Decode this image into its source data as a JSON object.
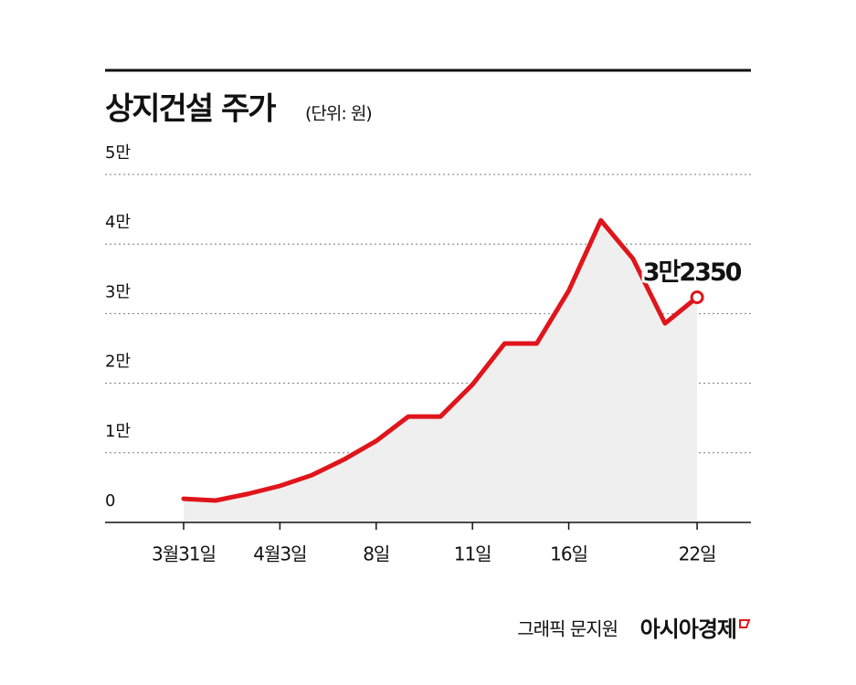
{
  "chart_data": {
    "type": "line",
    "title": "상지건설 주가",
    "subtitle": "(단위: 원)",
    "categories": [
      "3월31일",
      null,
      null,
      "4월3일",
      null,
      null,
      "8일",
      null,
      null,
      "11일",
      null,
      null,
      "16일",
      null,
      null,
      null,
      "22일"
    ],
    "series": [
      {
        "color": "#e0151b",
        "area_color": "#efefef",
        "values": [
          3400,
          3150,
          4100,
          5250,
          6800,
          9050,
          11700,
          15200,
          15200,
          19800,
          25700,
          25700,
          33300,
          43400,
          37900,
          28600,
          32350
        ],
        "value_labels": [
          null,
          null,
          null,
          null,
          null,
          null,
          null,
          null,
          null,
          null,
          null,
          null,
          null,
          null,
          null,
          null,
          "3만2350"
        ]
      }
    ],
    "ylim": [
      0,
      50000
    ],
    "yticks": [
      0,
      {
        "value": 10000,
        "label": "1만"
      },
      {
        "value": 20000,
        "label": "2만"
      },
      {
        "value": 30000,
        "label": "3만"
      },
      {
        "value": 40000,
        "label": "4만"
      },
      {
        "value": 50000,
        "label": "5만"
      }
    ],
    "grid": true
  },
  "credit": "그래픽 문지원",
  "logo": "아시아경제"
}
